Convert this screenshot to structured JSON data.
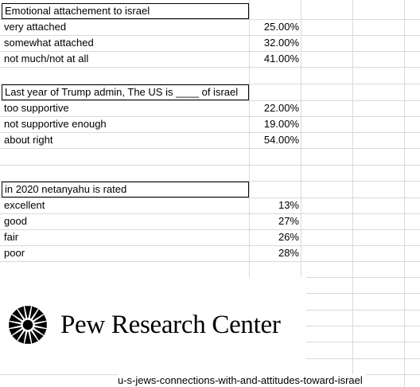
{
  "sections": [
    {
      "header": "Emotional attachement to israel",
      "rows": [
        {
          "label": "very attached",
          "value": "25.00%"
        },
        {
          "label": "somewhat attached",
          "value": "32.00%"
        },
        {
          "label": "not much/not at all",
          "value": "41.00%"
        }
      ]
    },
    {
      "header": "Last year of Trump admin, The US is ____ of israel",
      "rows": [
        {
          "label": "too supportive",
          "value": "22.00%"
        },
        {
          "label": "not supportive enough",
          "value": "19.00%"
        },
        {
          "label": "about right",
          "value": "54.00%"
        }
      ]
    },
    {
      "header": "in 2020 netanyahu is rated",
      "rows": [
        {
          "label": "excellent",
          "value": "13%"
        },
        {
          "label": "good",
          "value": "27%"
        },
        {
          "label": "fair",
          "value": "26%"
        },
        {
          "label": "poor",
          "value": "28%"
        }
      ]
    }
  ],
  "logo": {
    "text": "Pew Research Center",
    "icon": "sunburst-logo-icon"
  },
  "footer": "u-s-jews-connections-with-and-attitudes-toward-israel",
  "colors": {
    "gridline": "#d9d9d9",
    "border": "#000000",
    "text": "#000000"
  }
}
